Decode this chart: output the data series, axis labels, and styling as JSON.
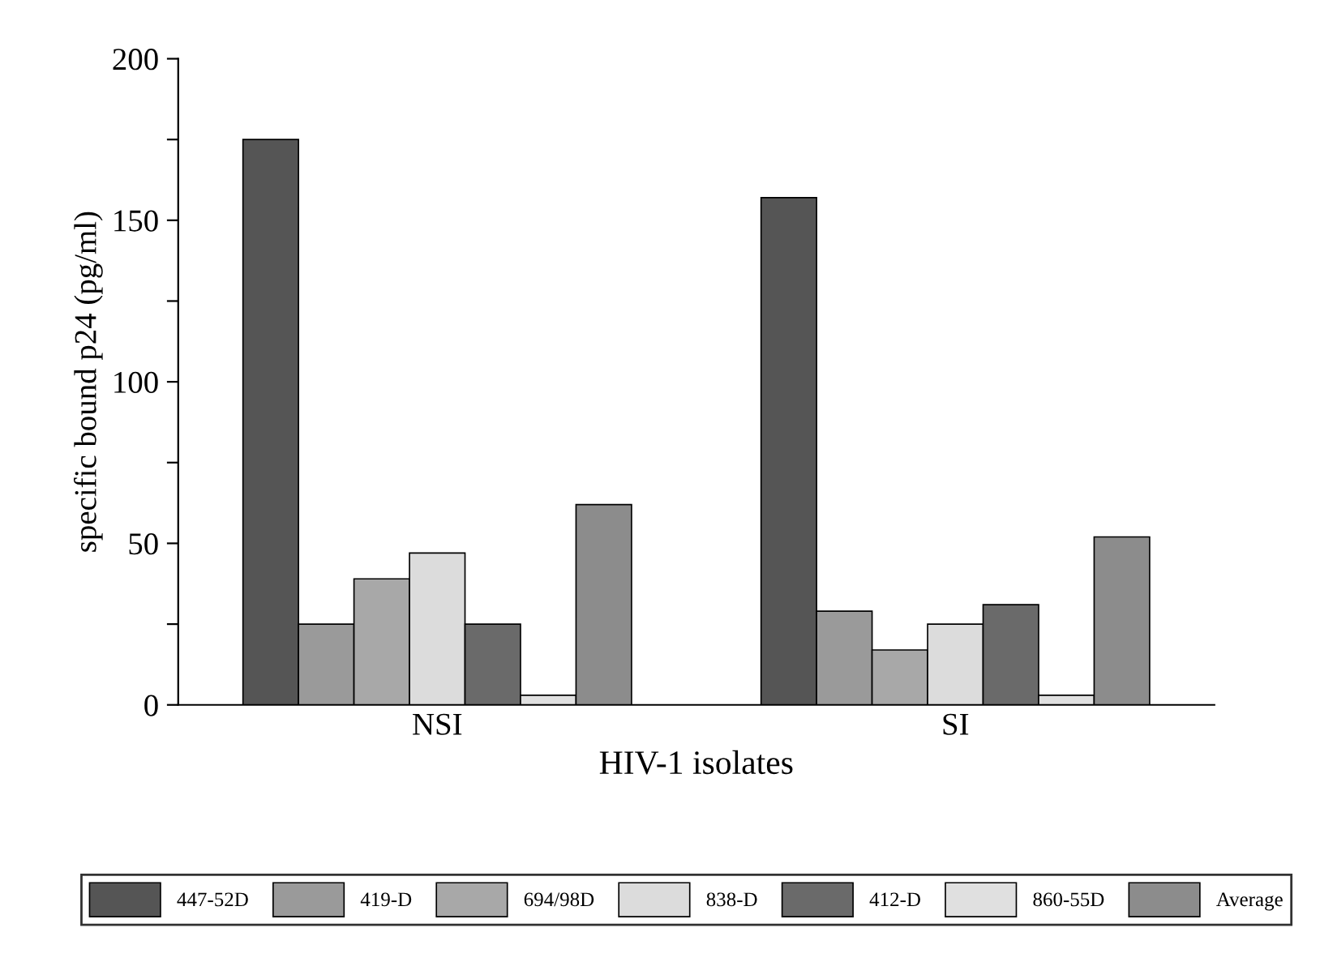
{
  "chart_data": {
    "type": "bar",
    "xlabel": "HIV-1 isolates",
    "ylabel": "specific bound p24 (pg/ml)",
    "categories": [
      "NSI",
      "SI"
    ],
    "series": [
      {
        "name": "447-52D",
        "color": "#555555",
        "values": [
          175,
          157
        ]
      },
      {
        "name": "419-D",
        "color": "#9a9a9a",
        "values": [
          25,
          29
        ]
      },
      {
        "name": "694/98D",
        "color": "#a8a8a8",
        "values": [
          39,
          17
        ]
      },
      {
        "name": "838-D",
        "color": "#dcdcdc",
        "values": [
          47,
          25
        ]
      },
      {
        "name": "412-D",
        "color": "#6a6a6a",
        "values": [
          25,
          31
        ]
      },
      {
        "name": "860-55D",
        "color": "#e0e0e0",
        "values": [
          3,
          3
        ]
      },
      {
        "name": "Average",
        "color": "#8c8c8c",
        "values": [
          62,
          52
        ]
      }
    ],
    "ylim": [
      0,
      200
    ],
    "yticks": [
      0,
      {
        "value": 25,
        "label": null
      },
      50,
      {
        "value": 75,
        "label": null
      },
      100,
      {
        "value": 125,
        "label": null
      },
      150,
      {
        "value": 175,
        "label": null
      },
      200
    ],
    "grid": false,
    "legend": "bottom"
  }
}
